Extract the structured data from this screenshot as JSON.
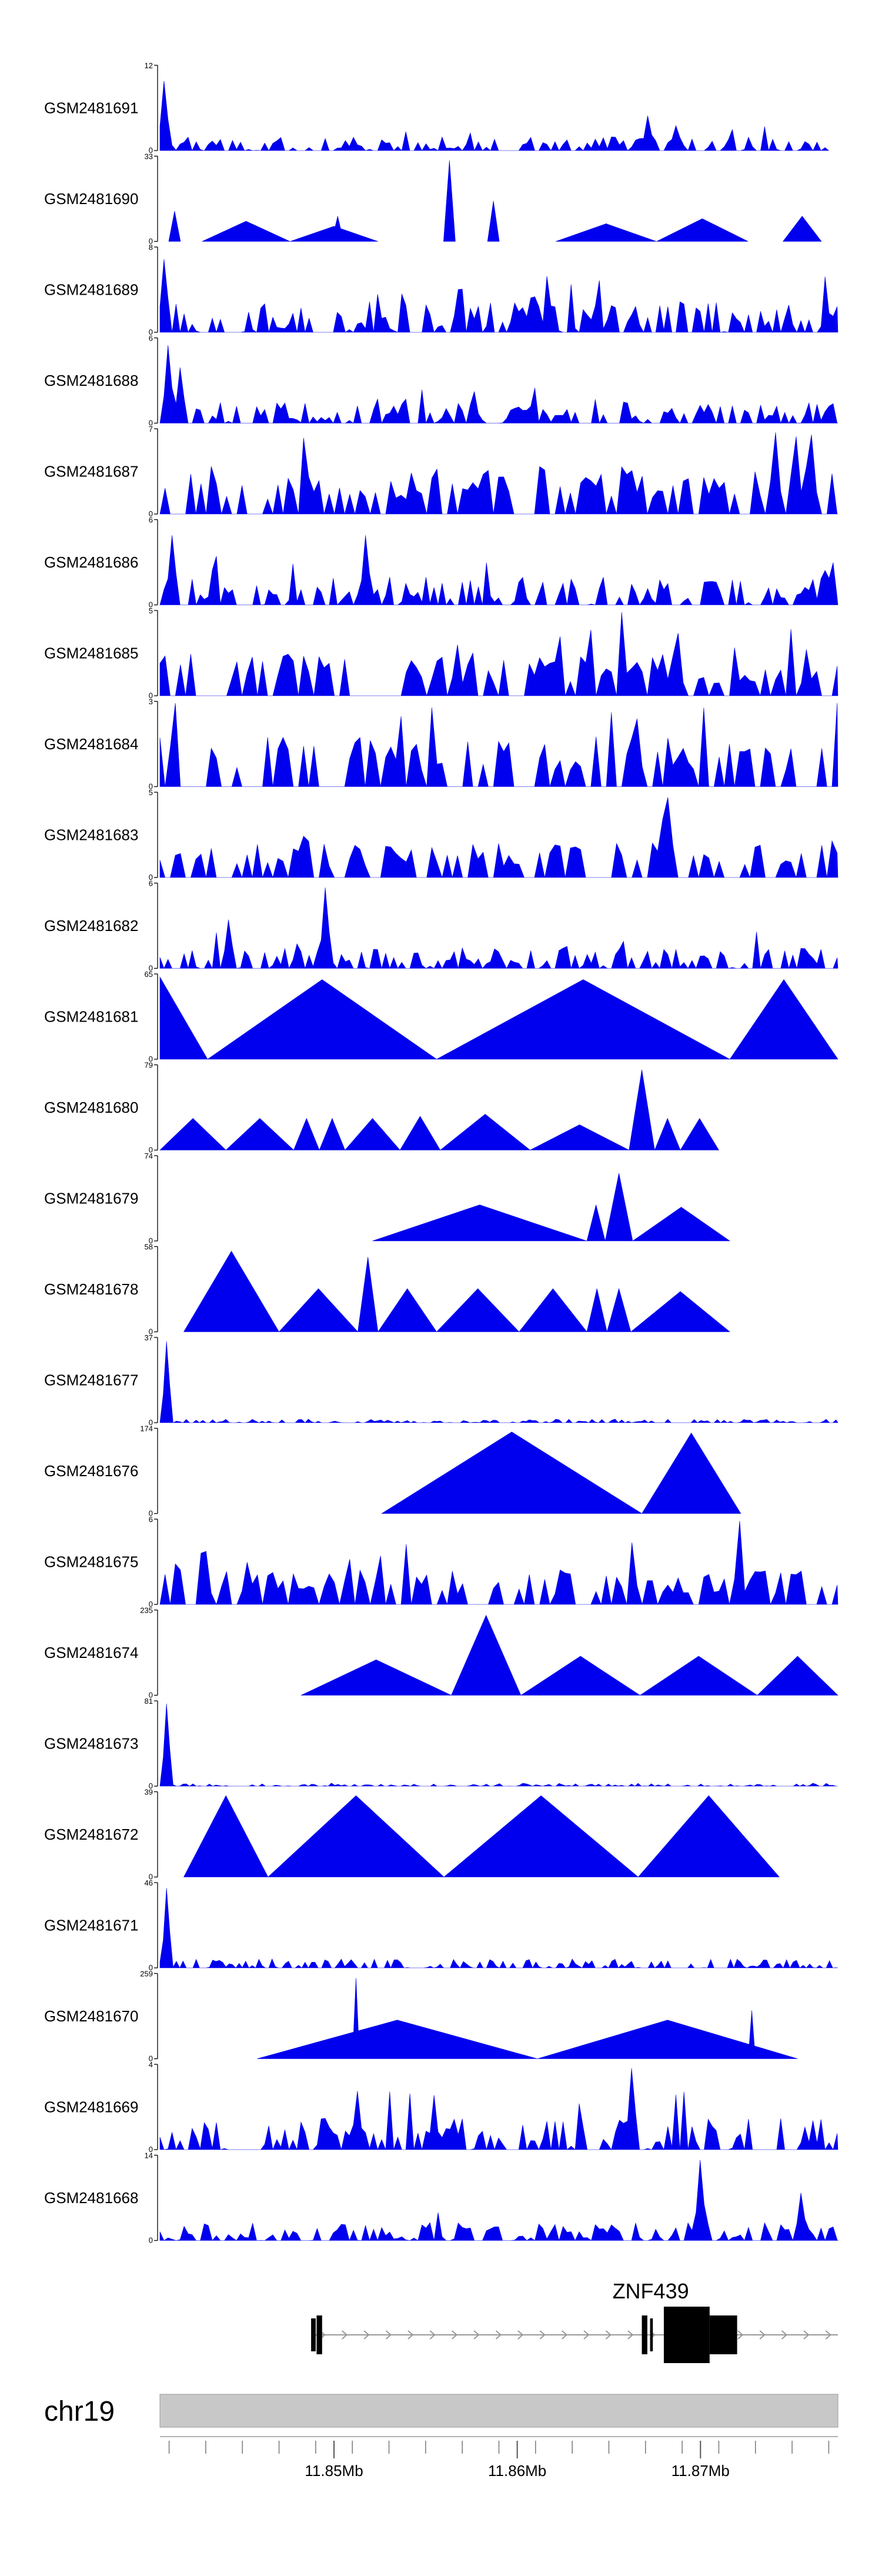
{
  "chart_data": {
    "type": "area",
    "colors": {
      "signal": "#0000ee",
      "axis": "#000000",
      "chrom_band": "#c8c8c8",
      "gene": "#000000",
      "intron": "#999999"
    },
    "x_range_mb": [
      11.8405,
      11.8775
    ],
    "tracks": [
      {
        "name": "GSM2481691",
        "ymax": 12,
        "ymin_label": "0",
        "ymax_label": "12",
        "start": 11.8405,
        "end": 11.877,
        "pattern": "dense",
        "base": 2,
        "peaks": [
          [
            11.8408,
            10
          ],
          [
            11.8671,
            5
          ]
        ]
      },
      {
        "name": "GSM2481690",
        "ymax": 33,
        "ymin_label": "0",
        "ymax_label": "33",
        "start": 11.8405,
        "end": 11.877,
        "pattern": "mixed",
        "base": 8,
        "peaks": [
          [
            11.8413,
            12
          ],
          [
            11.8563,
            32
          ],
          [
            11.8587,
            16
          ],
          [
            11.8502,
            10
          ]
        ],
        "tris": [
          [
            11.8428,
            11.8476,
            8
          ],
          [
            11.8476,
            11.8524,
            6
          ],
          [
            11.8621,
            11.8676,
            7
          ],
          [
            11.8676,
            11.8726,
            9
          ],
          [
            11.8745,
            11.8766,
            10
          ]
        ]
      },
      {
        "name": "GSM2481689",
        "ymax": 8,
        "ymin_label": "0",
        "ymax_label": "8",
        "start": 11.8405,
        "end": 11.8775,
        "pattern": "dense",
        "base": 3,
        "peaks": [
          [
            11.8408,
            7
          ]
        ]
      },
      {
        "name": "GSM2481688",
        "ymax": 6,
        "ymin_label": "0",
        "ymax_label": "6",
        "start": 11.8405,
        "end": 11.8775,
        "pattern": "dense",
        "base": 1.5,
        "peaks": [
          [
            11.841,
            5.6
          ],
          [
            11.8415,
            4
          ]
        ]
      },
      {
        "name": "GSM2481687",
        "ymax": 7,
        "ymin_label": "0",
        "ymax_label": "7",
        "start": 11.8405,
        "end": 11.8775,
        "pattern": "spiky",
        "base": 4,
        "peaks": [
          [
            11.8751,
            6.5
          ]
        ]
      },
      {
        "name": "GSM2481686",
        "ymax": 6,
        "ymin_label": "0",
        "ymax_label": "6",
        "start": 11.8405,
        "end": 11.8775,
        "pattern": "dense",
        "base": 2,
        "peaks": [
          [
            11.8411,
            5
          ],
          [
            11.8518,
            5
          ]
        ]
      },
      {
        "name": "GSM2481685",
        "ymax": 5,
        "ymin_label": "0",
        "ymax_label": "5",
        "start": 11.8405,
        "end": 11.8775,
        "pattern": "spiky",
        "base": 2.5,
        "peaks": [
          [
            11.8656,
            5
          ]
        ]
      },
      {
        "name": "GSM2481684",
        "ymax": 3,
        "ymin_label": "0",
        "ymax_label": "3",
        "start": 11.8405,
        "end": 11.8775,
        "pattern": "spiky",
        "base": 1.8,
        "peaks": [
          [
            11.8413,
            3
          ]
        ]
      },
      {
        "name": "GSM2481683",
        "ymax": 5,
        "ymin_label": "0",
        "ymax_label": "5",
        "start": 11.8405,
        "end": 11.8775,
        "pattern": "spiky",
        "base": 2.2,
        "peaks": [
          [
            11.8681,
            4.8
          ]
        ]
      },
      {
        "name": "GSM2481682",
        "ymax": 6,
        "ymin_label": "0",
        "ymax_label": "6",
        "start": 11.8405,
        "end": 11.8775,
        "pattern": "dense",
        "base": 1.5,
        "peaks": [
          [
            11.8496,
            5.8
          ],
          [
            11.8443,
            3.5
          ]
        ]
      },
      {
        "name": "GSM2481681",
        "ymax": 65,
        "ymin_label": "0",
        "ymax_label": "65",
        "start": 11.8405,
        "end": 11.8775,
        "pattern": "tri",
        "tris": [
          [
            11.8405,
            11.8431,
            64
          ],
          [
            11.8431,
            11.8556,
            62
          ],
          [
            11.8556,
            11.8716,
            62
          ],
          [
            11.8716,
            11.8775,
            62
          ]
        ]
      },
      {
        "name": "GSM2481680",
        "ymax": 79,
        "ymin_label": "0",
        "ymax_label": "79",
        "start": 11.8405,
        "end": 11.8775,
        "pattern": "tri",
        "tris": [
          [
            11.8405,
            11.8441,
            30
          ],
          [
            11.8441,
            11.8478,
            30
          ],
          [
            11.8478,
            11.8492,
            30
          ],
          [
            11.8492,
            11.8506,
            30
          ],
          [
            11.8506,
            11.8536,
            30
          ],
          [
            11.8536,
            11.8558,
            32
          ],
          [
            11.8558,
            11.8607,
            34
          ],
          [
            11.8607,
            11.8661,
            24
          ],
          [
            11.8661,
            11.8675,
            76
          ],
          [
            11.8675,
            11.8689,
            30
          ],
          [
            11.8689,
            11.871,
            30
          ]
        ]
      },
      {
        "name": "GSM2481679",
        "ymax": 74,
        "ymin_label": "0",
        "ymax_label": "74",
        "start": 11.8521,
        "end": 11.8716,
        "pattern": "tri",
        "tris": [
          [
            11.8521,
            11.8638,
            32
          ],
          [
            11.8638,
            11.8648,
            32
          ],
          [
            11.8648,
            11.8663,
            60
          ],
          [
            11.8663,
            11.8716,
            30
          ]
        ]
      },
      {
        "name": "GSM2481678",
        "ymax": 58,
        "ymin_label": "0",
        "ymax_label": "58",
        "start": 11.8418,
        "end": 11.8716,
        "pattern": "tri",
        "tris": [
          [
            11.8418,
            11.847,
            56
          ],
          [
            11.847,
            11.8513,
            30
          ],
          [
            11.8513,
            11.8524,
            52
          ],
          [
            11.8524,
            11.8556,
            30
          ],
          [
            11.8556,
            11.8601,
            30
          ],
          [
            11.8601,
            11.8638,
            30
          ],
          [
            11.8638,
            11.8649,
            30
          ],
          [
            11.8649,
            11.8662,
            30
          ],
          [
            11.8662,
            11.8716,
            28
          ]
        ]
      },
      {
        "name": "GSM2481677",
        "ymax": 37,
        "ymin_label": "0",
        "ymax_label": "37",
        "start": 11.8405,
        "end": 11.8775,
        "pattern": "low",
        "base": 1.6,
        "peaks": [
          [
            11.8409,
            36
          ]
        ]
      },
      {
        "name": "GSM2481676",
        "ymax": 174,
        "ymin_label": "0",
        "ymax_label": "174",
        "start": 11.8526,
        "end": 11.8722,
        "pattern": "tri",
        "tris": [
          [
            11.8526,
            11.8668,
            170
          ],
          [
            11.8668,
            11.8722,
            168
          ]
        ]
      },
      {
        "name": "GSM2481675",
        "ymax": 6,
        "ymin_label": "0",
        "ymax_label": "6",
        "start": 11.8405,
        "end": 11.8775,
        "pattern": "spiky",
        "base": 2.5,
        "peaks": [
          [
            11.8721,
            6
          ]
        ]
      },
      {
        "name": "GSM2481674",
        "ymax": 235,
        "ymin_label": "0",
        "ymax_label": "235",
        "start": 11.8482,
        "end": 11.8775,
        "pattern": "tri",
        "tris": [
          [
            11.8482,
            11.8564,
            100
          ],
          [
            11.8564,
            11.8602,
            225
          ],
          [
            11.8602,
            11.8667,
            110
          ],
          [
            11.8667,
            11.8731,
            110
          ],
          [
            11.8731,
            11.8775,
            110
          ]
        ]
      },
      {
        "name": "GSM2481673",
        "ymax": 81,
        "ymin_label": "0",
        "ymax_label": "81",
        "start": 11.8405,
        "end": 11.8775,
        "pattern": "low",
        "base": 3,
        "peaks": [
          [
            11.8409,
            80
          ]
        ]
      },
      {
        "name": "GSM2481672",
        "ymax": 39,
        "ymin_label": "0",
        "ymax_label": "39",
        "start": 11.8418,
        "end": 11.8743,
        "pattern": "tri",
        "tris": [
          [
            11.8418,
            11.8464,
            38
          ],
          [
            11.8464,
            11.856,
            38
          ],
          [
            11.856,
            11.8666,
            38
          ],
          [
            11.8666,
            11.8743,
            38
          ]
        ]
      },
      {
        "name": "GSM2481671",
        "ymax": 46,
        "ymin_label": "0",
        "ymax_label": "46",
        "start": 11.8405,
        "end": 11.8775,
        "pattern": "low",
        "base": 5,
        "peaks": [
          [
            11.8408,
            44
          ]
        ]
      },
      {
        "name": "GSM2481670",
        "ymax": 259,
        "ymin_label": "0",
        "ymax_label": "259",
        "start": 11.8458,
        "end": 11.8753,
        "pattern": "tri",
        "tris": [
          [
            11.8458,
            11.8611,
            120
          ],
          [
            11.8611,
            11.8753,
            120
          ]
        ],
        "peaks": [
          [
            11.8512,
            250
          ],
          [
            11.8728,
            150
          ]
        ]
      },
      {
        "name": "GSM2481669",
        "ymax": 4,
        "ymin_label": "0",
        "ymax_label": "4",
        "start": 11.8405,
        "end": 11.8775,
        "pattern": "dense",
        "base": 1.5,
        "peaks": [
          [
            11.8662,
            3.9
          ]
        ]
      },
      {
        "name": "GSM2481668",
        "ymax": 14,
        "ymin_label": "0",
        "ymax_label": "14",
        "start": 11.8405,
        "end": 11.8775,
        "pattern": "dense",
        "base": 3,
        "peaks": [
          [
            11.87,
            13.5
          ],
          [
            11.8755,
            8
          ]
        ]
      }
    ],
    "gene": {
      "name": "ZNF439",
      "strand": "+",
      "start": 11.8488,
      "end": 11.8775,
      "exons": [
        [
          11.84875,
          11.849,
          "thin"
        ],
        [
          11.84905,
          11.84935,
          "mid"
        ],
        [
          11.8668,
          11.8671,
          "mid"
        ],
        [
          11.86725,
          11.8674,
          "thin"
        ],
        [
          11.868,
          11.8705,
          "thick"
        ],
        [
          11.8705,
          11.872,
          "mid"
        ]
      ]
    },
    "chromosome": "chr19",
    "axis_ticks": [
      {
        "value": 11.85,
        "label": "11.85Mb"
      },
      {
        "value": 11.86,
        "label": "11.86Mb"
      },
      {
        "value": 11.87,
        "label": "11.87Mb"
      }
    ],
    "minor_ticks": [
      11.841,
      11.843,
      11.845,
      11.847,
      11.849,
      11.851,
      11.853,
      11.855,
      11.857,
      11.859,
      11.861,
      11.863,
      11.865,
      11.867,
      11.869,
      11.871,
      11.873,
      11.875,
      11.877
    ]
  }
}
